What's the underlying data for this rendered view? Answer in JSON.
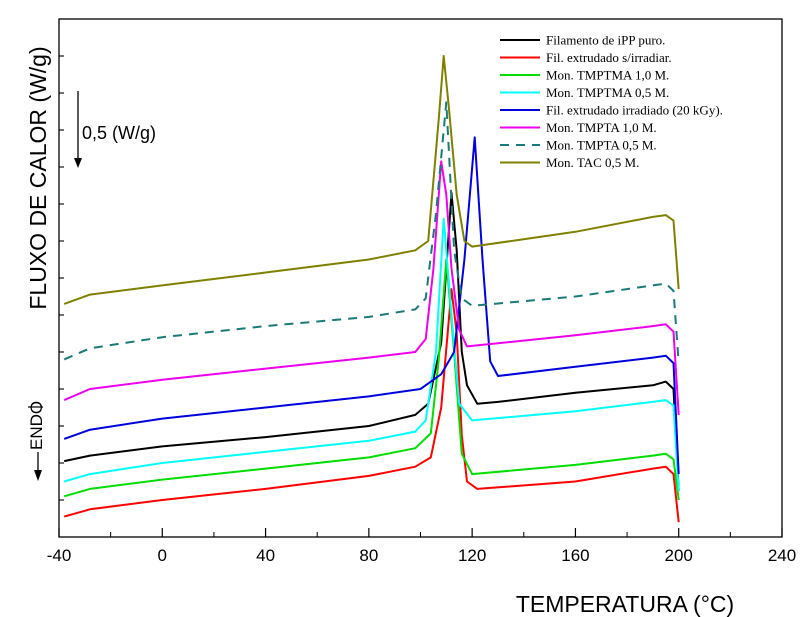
{
  "chart_data": {
    "type": "line",
    "xlabel": "TEMPERATURA (°C)",
    "ylabel": "FLUXO DE CALOR (W/g)",
    "xlim": [
      -40,
      240
    ],
    "x_ticks": [
      -40,
      0,
      40,
      80,
      120,
      160,
      200,
      240
    ],
    "y_ticks_visible": false,
    "grid": false,
    "legend_position": "top-right",
    "annotations": {
      "scale_bar": "0,5 (W/g)",
      "endo": "ENDO"
    },
    "series": [
      {
        "name": "Filamento de iPP puro.",
        "color": "#000000",
        "dash": "solid",
        "points": [
          [
            -38,
            0.41
          ],
          [
            -28,
            0.44
          ],
          [
            0,
            0.49
          ],
          [
            40,
            0.54
          ],
          [
            80,
            0.6
          ],
          [
            98,
            0.66
          ],
          [
            103,
            0.72
          ],
          [
            108,
            1.05
          ],
          [
            112,
            1.86
          ],
          [
            114,
            1.55
          ],
          [
            116,
            1.0
          ],
          [
            118,
            0.82
          ],
          [
            122,
            0.72
          ],
          [
            130,
            0.73
          ],
          [
            160,
            0.78
          ],
          [
            190,
            0.82
          ],
          [
            195,
            0.84
          ],
          [
            198,
            0.8
          ],
          [
            200,
            0.25
          ]
        ]
      },
      {
        "name": "Fil. extrudado s/irradiar.",
        "color": "#ff0000",
        "dash": "solid",
        "points": [
          [
            -38,
            0.11
          ],
          [
            -28,
            0.15
          ],
          [
            0,
            0.2
          ],
          [
            40,
            0.26
          ],
          [
            80,
            0.33
          ],
          [
            98,
            0.38
          ],
          [
            104,
            0.43
          ],
          [
            108,
            0.7
          ],
          [
            112,
            1.34
          ],
          [
            114,
            1.1
          ],
          [
            116,
            0.55
          ],
          [
            118,
            0.3
          ],
          [
            122,
            0.26
          ],
          [
            160,
            0.3
          ],
          [
            190,
            0.37
          ],
          [
            195,
            0.38
          ],
          [
            198,
            0.34
          ],
          [
            200,
            0.08
          ]
        ]
      },
      {
        "name": "Mon. TMPTMA 1,0 M.",
        "color": "#00dd00",
        "dash": "solid",
        "points": [
          [
            -38,
            0.22
          ],
          [
            -28,
            0.26
          ],
          [
            0,
            0.31
          ],
          [
            40,
            0.37
          ],
          [
            80,
            0.43
          ],
          [
            98,
            0.48
          ],
          [
            104,
            0.56
          ],
          [
            107,
            0.95
          ],
          [
            110,
            1.5
          ],
          [
            113,
            1.0
          ],
          [
            116,
            0.45
          ],
          [
            120,
            0.34
          ],
          [
            160,
            0.39
          ],
          [
            190,
            0.44
          ],
          [
            195,
            0.45
          ],
          [
            198,
            0.42
          ],
          [
            200,
            0.2
          ]
        ]
      },
      {
        "name": "Mon. TMPTMA 0,5 M.",
        "color": "#00ffff",
        "dash": "solid",
        "points": [
          [
            -38,
            0.3
          ],
          [
            -28,
            0.34
          ],
          [
            0,
            0.4
          ],
          [
            40,
            0.46
          ],
          [
            80,
            0.52
          ],
          [
            98,
            0.57
          ],
          [
            102,
            0.63
          ],
          [
            106,
            1.0
          ],
          [
            109,
            1.72
          ],
          [
            112,
            1.2
          ],
          [
            115,
            0.72
          ],
          [
            120,
            0.63
          ],
          [
            160,
            0.68
          ],
          [
            190,
            0.73
          ],
          [
            195,
            0.74
          ],
          [
            198,
            0.71
          ],
          [
            200,
            0.25
          ]
        ]
      },
      {
        "name": "Fil. extrudado irradiado (20 kGy).",
        "color": "#0000dd",
        "dash": "solid",
        "points": [
          [
            -38,
            0.53
          ],
          [
            -28,
            0.58
          ],
          [
            0,
            0.64
          ],
          [
            40,
            0.7
          ],
          [
            80,
            0.76
          ],
          [
            100,
            0.8
          ],
          [
            108,
            0.88
          ],
          [
            113,
            1.0
          ],
          [
            117,
            1.5
          ],
          [
            121,
            2.16
          ],
          [
            124,
            1.5
          ],
          [
            127,
            0.95
          ],
          [
            130,
            0.87
          ],
          [
            160,
            0.92
          ],
          [
            190,
            0.97
          ],
          [
            195,
            0.98
          ],
          [
            198,
            0.94
          ],
          [
            200,
            0.34
          ]
        ]
      },
      {
        "name": "Mon. TMPTA 1,0 M.",
        "color": "#ee00ee",
        "dash": "solid",
        "points": [
          [
            -38,
            0.74
          ],
          [
            -28,
            0.8
          ],
          [
            0,
            0.85
          ],
          [
            40,
            0.91
          ],
          [
            80,
            0.97
          ],
          [
            98,
            1.0
          ],
          [
            102,
            1.07
          ],
          [
            105,
            1.45
          ],
          [
            108,
            2.03
          ],
          [
            110,
            1.85
          ],
          [
            112,
            1.45
          ],
          [
            115,
            1.12
          ],
          [
            118,
            1.03
          ],
          [
            160,
            1.09
          ],
          [
            190,
            1.14
          ],
          [
            195,
            1.15
          ],
          [
            198,
            1.11
          ],
          [
            200,
            0.66
          ]
        ]
      },
      {
        "name": "Mon. TMPTA 0,5 M.",
        "color": "#1a7a7a",
        "dash": "dashed",
        "points": [
          [
            -38,
            0.96
          ],
          [
            -28,
            1.02
          ],
          [
            0,
            1.08
          ],
          [
            40,
            1.14
          ],
          [
            80,
            1.19
          ],
          [
            98,
            1.23
          ],
          [
            102,
            1.29
          ],
          [
            106,
            1.75
          ],
          [
            110,
            2.35
          ],
          [
            113,
            1.55
          ],
          [
            116,
            1.29
          ],
          [
            120,
            1.25
          ],
          [
            160,
            1.3
          ],
          [
            190,
            1.36
          ],
          [
            195,
            1.37
          ],
          [
            198,
            1.33
          ],
          [
            200,
            0.94
          ]
        ]
      },
      {
        "name": "Mon. TAC 0,5 M.",
        "color": "#808000",
        "dash": "solid",
        "points": [
          [
            -38,
            1.26
          ],
          [
            -28,
            1.31
          ],
          [
            0,
            1.36
          ],
          [
            40,
            1.43
          ],
          [
            80,
            1.5
          ],
          [
            98,
            1.55
          ],
          [
            103,
            1.6
          ],
          [
            107,
            2.25
          ],
          [
            109,
            2.6
          ],
          [
            111,
            2.32
          ],
          [
            114,
            1.85
          ],
          [
            117,
            1.6
          ],
          [
            120,
            1.57
          ],
          [
            160,
            1.65
          ],
          [
            190,
            1.73
          ],
          [
            195,
            1.74
          ],
          [
            198,
            1.71
          ],
          [
            200,
            1.34
          ]
        ]
      }
    ]
  }
}
